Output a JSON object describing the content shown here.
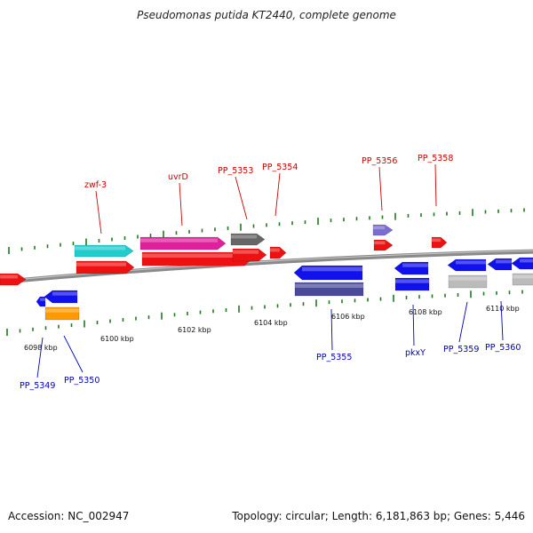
{
  "title": "Pseudomonas putida KT2440, complete genome",
  "footer": {
    "accession": "Accession: NC_002947",
    "summary": "Topology: circular; Length: 6,181,863 bp; Genes: 5,446"
  },
  "colors": {
    "top_label": "#cc0000",
    "bottom_label": "#0000bb",
    "tick": "#1f7a1f",
    "backbone": "#8a8a8a"
  },
  "kbp_ticks": [
    {
      "text": "6098 kbp"
    },
    {
      "text": "6100 kbp"
    },
    {
      "text": "6102 kbp"
    },
    {
      "text": "6104 kbp"
    },
    {
      "text": "6106 kbp"
    },
    {
      "text": "6108 kbp"
    },
    {
      "text": "6110 kbp"
    }
  ],
  "top_labels": [
    {
      "text": "zwf-3"
    },
    {
      "text": "uvrD"
    },
    {
      "text": "PP_5353"
    },
    {
      "text": "PP_5354"
    },
    {
      "text": "PP_5356"
    },
    {
      "text": "PP_5358"
    }
  ],
  "bottom_labels": [
    {
      "text": "PP_5349"
    },
    {
      "text": "PP_5350"
    },
    {
      "text": "PP_5355"
    },
    {
      "text": "pkxY"
    },
    {
      "text": "PP_5359"
    },
    {
      "text": "PP_5360"
    }
  ]
}
